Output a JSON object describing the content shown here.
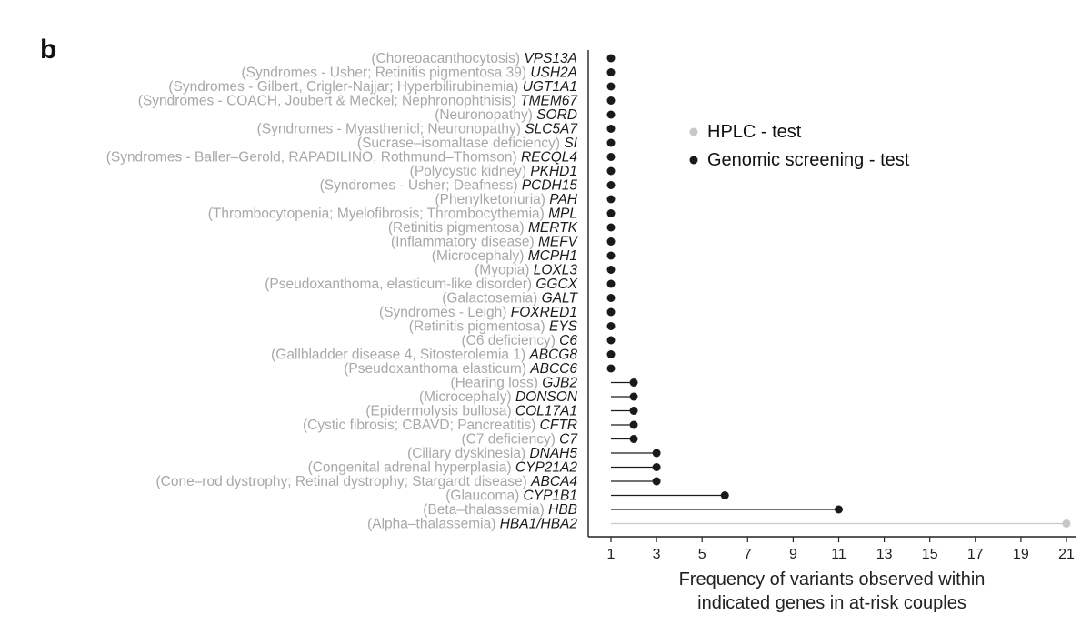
{
  "panel_label": "b",
  "colors": {
    "hplc": "#c8c8c8",
    "genomic": "#1a1a1a",
    "disease_text": "#a8a8a8",
    "gene_text": "#1a1a1a",
    "axis": "#222222"
  },
  "chart_data": {
    "type": "lollipop",
    "orientation": "horizontal",
    "xlabel": "Frequency of variants observed within indicated genes in at-risk couples",
    "xlabel_lines": [
      "Frequency of variants observed within",
      "indicated genes in at-risk couples"
    ],
    "xlim": [
      1,
      21
    ],
    "xticks": [
      1,
      3,
      5,
      7,
      9,
      11,
      13,
      15,
      17,
      19,
      21
    ],
    "legend": {
      "position": "top-right",
      "entries": [
        {
          "label": "HPLC - test",
          "color": "#c8c8c8"
        },
        {
          "label": "Genomic screening - test",
          "color": "#1a1a1a"
        }
      ]
    },
    "rows": [
      {
        "disease": "(Choreoacanthocytosis)",
        "gene": "VPS13A",
        "value": 1,
        "test": "Genomic screening - test"
      },
      {
        "disease": "(Syndromes - Usher; Retinitis pigmentosa 39)",
        "gene": "USH2A",
        "value": 1,
        "test": "Genomic screening - test"
      },
      {
        "disease": "(Syndromes - Gilbert, Crigler-Najjar; Hyperbilirubinemia)",
        "gene": "UGT1A1",
        "value": 1,
        "test": "Genomic screening - test"
      },
      {
        "disease": "(Syndromes - COACH, Joubert & Meckel; Nephronophthisis)",
        "gene": "TMEM67",
        "value": 1,
        "test": "Genomic screening - test"
      },
      {
        "disease": "(Neuronopathy)",
        "gene": "SORD",
        "value": 1,
        "test": "Genomic screening - test"
      },
      {
        "disease": "(Syndromes - Myasthenicl; Neuronopathy)",
        "gene": "SLC5A7",
        "value": 1,
        "test": "Genomic screening - test"
      },
      {
        "disease": "(Sucrase–isomaltase deficiency)",
        "gene": "SI",
        "value": 1,
        "test": "Genomic screening - test"
      },
      {
        "disease": "(Syndromes - Baller–Gerold, RAPADILINO, Rothmund–Thomson)",
        "gene": "RECQL4",
        "value": 1,
        "test": "Genomic screening - test"
      },
      {
        "disease": "(Polycystic kidney)",
        "gene": "PKHD1",
        "value": 1,
        "test": "Genomic screening - test"
      },
      {
        "disease": "(Syndromes - Usher; Deafness)",
        "gene": "PCDH15",
        "value": 1,
        "test": "Genomic screening - test"
      },
      {
        "disease": "(Phenylketonuria)",
        "gene": "PAH",
        "value": 1,
        "test": "Genomic screening - test"
      },
      {
        "disease": "(Thrombocytopenia; Myelofibrosis; Thrombocythemia)",
        "gene": "MPL",
        "value": 1,
        "test": "Genomic screening - test"
      },
      {
        "disease": "(Retinitis pigmentosa)",
        "gene": "MERTK",
        "value": 1,
        "test": "Genomic screening - test"
      },
      {
        "disease": "(Inflammatory disease)",
        "gene": "MEFV",
        "value": 1,
        "test": "Genomic screening - test"
      },
      {
        "disease": "(Microcephaly)",
        "gene": "MCPH1",
        "value": 1,
        "test": "Genomic screening - test"
      },
      {
        "disease": "(Myopia)",
        "gene": "LOXL3",
        "value": 1,
        "test": "Genomic screening - test"
      },
      {
        "disease": "(Pseudoxanthoma, elasticum-like disorder)",
        "gene": "GGCX",
        "value": 1,
        "test": "Genomic screening - test"
      },
      {
        "disease": "(Galactosemia)",
        "gene": "GALT",
        "value": 1,
        "test": "Genomic screening - test"
      },
      {
        "disease": "(Syndromes - Leigh)",
        "gene": "FOXRED1",
        "value": 1,
        "test": "Genomic screening - test"
      },
      {
        "disease": "(Retinitis pigmentosa)",
        "gene": "EYS",
        "value": 1,
        "test": "Genomic screening - test"
      },
      {
        "disease": "(C6 deficiency)",
        "gene": "C6",
        "value": 1,
        "test": "Genomic screening - test"
      },
      {
        "disease": "(Gallbladder disease 4, Sitosterolemia 1)",
        "gene": "ABCG8",
        "value": 1,
        "test": "Genomic screening - test"
      },
      {
        "disease": "(Pseudoxanthoma elasticum)",
        "gene": "ABCC6",
        "value": 1,
        "test": "Genomic screening - test"
      },
      {
        "disease": "(Hearing loss)",
        "gene": "GJB2",
        "value": 2,
        "test": "Genomic screening - test"
      },
      {
        "disease": "(Microcephaly)",
        "gene": "DONSON",
        "value": 2,
        "test": "Genomic screening - test"
      },
      {
        "disease": "(Epidermolysis bullosa)",
        "gene": "COL17A1",
        "value": 2,
        "test": "Genomic screening - test"
      },
      {
        "disease": "(Cystic fibrosis; CBAVD; Pancreatitis)",
        "gene": "CFTR",
        "value": 2,
        "test": "Genomic screening - test"
      },
      {
        "disease": "(C7 deficiency)",
        "gene": "C7",
        "value": 2,
        "test": "Genomic screening - test"
      },
      {
        "disease": "(Ciliary dyskinesia)",
        "gene": "DNAH5",
        "value": 3,
        "test": "Genomic screening - test"
      },
      {
        "disease": "(Congenital adrenal hyperplasia)",
        "gene": "CYP21A2",
        "value": 3,
        "test": "Genomic screening - test"
      },
      {
        "disease": "(Cone–rod dystrophy; Retinal dystrophy; Stargardt disease)",
        "gene": "ABCA4",
        "value": 3,
        "test": "Genomic screening - test"
      },
      {
        "disease": "(Glaucoma)",
        "gene": "CYP1B1",
        "value": 6,
        "test": "Genomic screening - test"
      },
      {
        "disease": "(Beta–thalassemia)",
        "gene": "HBB",
        "value": 11,
        "test": "Genomic screening - test"
      },
      {
        "disease": "(Alpha–thalassemia)",
        "gene": "HBA1/HBA2",
        "value": 21,
        "test": "HPLC - test"
      }
    ]
  }
}
